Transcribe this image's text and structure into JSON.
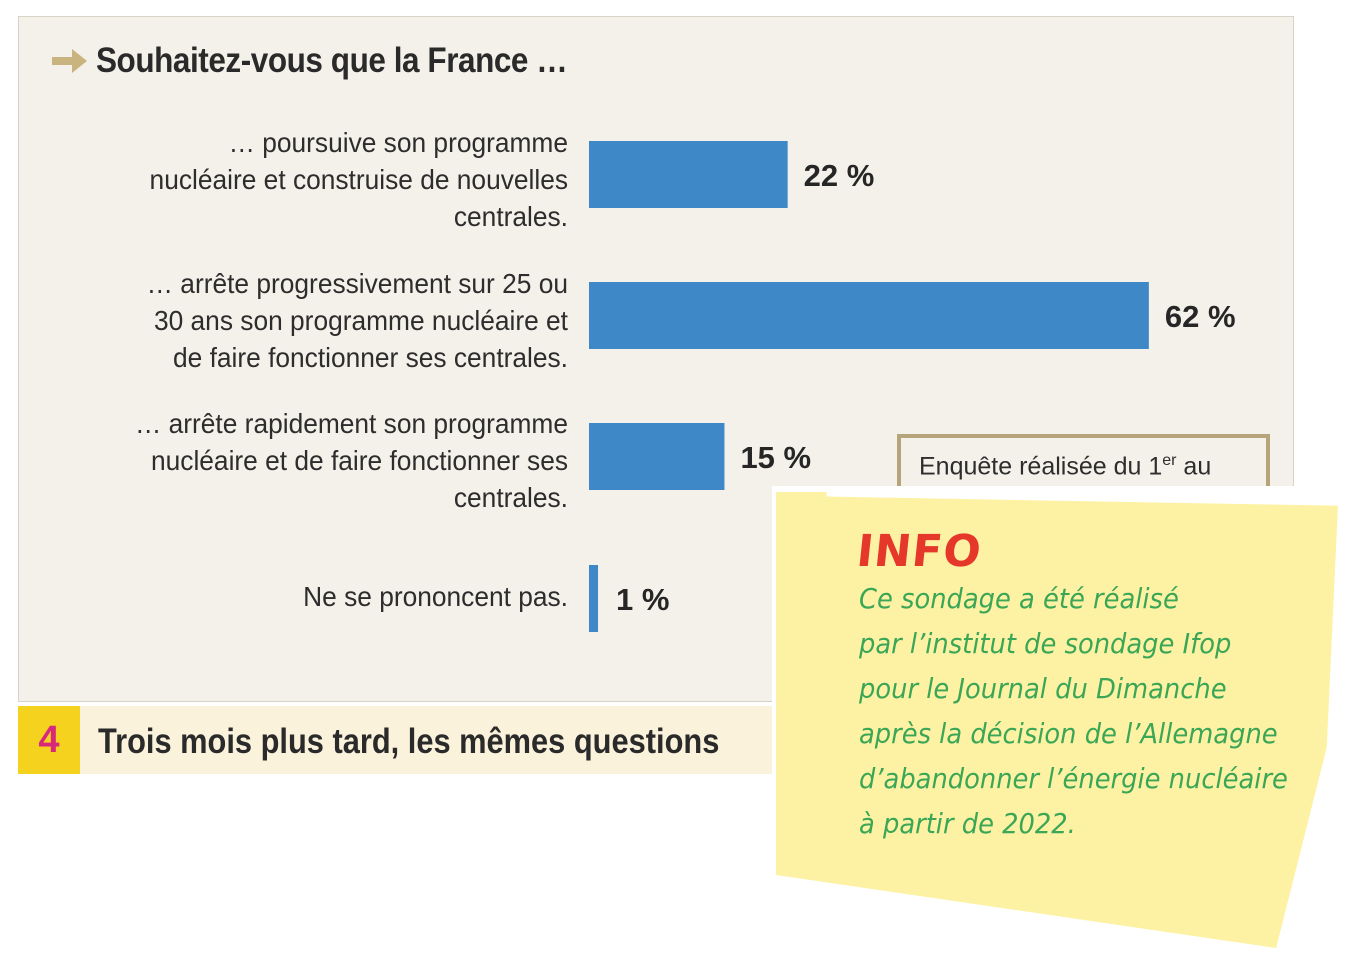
{
  "title": "Souhaitez-vous que la France …",
  "chart_data": {
    "type": "bar",
    "orientation": "horizontal",
    "categories": [
      "… poursuive son programme nucléaire et construise de nouvelles centrales.",
      "… arrête progressivement sur 25 ou 30 ans son programme nucléaire et de faire fonctionner ses centrales.",
      "… arrête rapidement son programme nucléaire et de faire fonctionner ses centrales.",
      "Ne se prononcent pas."
    ],
    "category_lines": [
      [
        "… poursuive son programme",
        "nucléaire et construise de nouvelles",
        "centrales."
      ],
      [
        "… arrête progressivement sur 25 ou",
        "30 ans son programme nucléaire et",
        "de faire fonctionner ses centrales."
      ],
      [
        "… arrête rapidement son programme",
        "nucléaire et de faire fonctionner ses",
        "centrales."
      ],
      [
        "Ne se prononcent pas."
      ]
    ],
    "values": [
      22,
      62,
      15,
      1
    ],
    "value_labels": [
      "22 %",
      "62 %",
      "15 %",
      "1 %"
    ],
    "unit": "%",
    "xlim": [
      0,
      62
    ],
    "bar_color": "#3f88c8",
    "grid": false
  },
  "survey_note": {
    "prefix": "Enquête réalisée du 1",
    "superscript": "er",
    "suffix": " au"
  },
  "section": {
    "number": "4",
    "title": "Trois mois plus tard, les mêmes questions"
  },
  "info_note": {
    "title": "INFO",
    "lines": [
      "Ce sondage a été réalisé",
      "par l’institut de sondage Ifop",
      "pour le Journal du Dimanche",
      "après la décision de l’Allemagne",
      "d’abandonner l’énergie nucléaire",
      "à partir de 2022."
    ]
  },
  "colors": {
    "panel_background": "#f4f1ea",
    "arrow": "#c9b37e",
    "section_number_background": "#f4d21d",
    "section_number_text": "#d8287c",
    "note_background": "#fdf2a4",
    "note_title": "#e5372a",
    "note_text": "#3aa656"
  }
}
